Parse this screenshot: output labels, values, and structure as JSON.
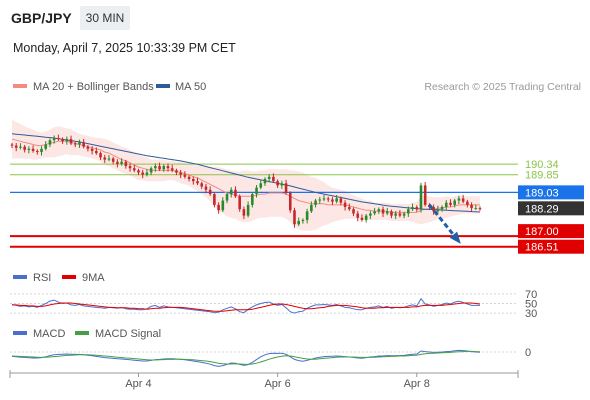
{
  "header": {
    "symbol": "GBP/JPY",
    "timeframe": "30 MIN"
  },
  "datetime": "Monday, April 7, 2025 10:33:39 PM CET",
  "legend": {
    "ma20": {
      "label": "MA 20 + Bollinger Bands",
      "color": "#f28b82"
    },
    "ma50": {
      "label": "MA 50",
      "color": "#2e5c9a"
    },
    "credit": "Research © 2025 Trading Central"
  },
  "chart_data": [
    {
      "type": "candlestick",
      "title": "",
      "ylim": [
        185.8,
        193.5
      ],
      "n_bars": 112,
      "price": [
        191.2,
        191.1,
        191.15,
        191.0,
        191.05,
        190.95,
        190.9,
        191.05,
        191.25,
        191.45,
        191.55,
        191.5,
        191.4,
        191.5,
        191.3,
        191.25,
        191.35,
        191.15,
        191.05,
        190.95,
        190.85,
        190.65,
        190.55,
        190.6,
        190.45,
        190.35,
        190.45,
        190.25,
        190.15,
        190.05,
        189.95,
        189.85,
        189.95,
        190.15,
        190.25,
        190.1,
        190.25,
        190.15,
        190.05,
        189.95,
        189.85,
        189.75,
        189.65,
        189.55,
        189.45,
        189.3,
        189.15,
        188.95,
        188.45,
        188.2,
        188.65,
        188.95,
        189.15,
        188.85,
        188.25,
        187.95,
        188.45,
        188.95,
        189.25,
        189.45,
        189.65,
        189.75,
        189.55,
        189.35,
        189.45,
        189.0,
        188.2,
        187.55,
        187.7,
        187.75,
        188.15,
        188.45,
        188.65,
        188.7,
        188.75,
        188.7,
        188.6,
        188.75,
        188.55,
        188.35,
        188.25,
        188.05,
        187.85,
        187.75,
        187.95,
        188.05,
        188.15,
        188.25,
        188.05,
        188.15,
        187.95,
        188.05,
        187.95,
        188.05,
        188.25,
        188.35,
        188.25,
        189.35,
        188.45,
        188.35,
        188.15,
        188.25,
        188.35,
        188.55,
        188.45,
        188.65,
        188.75,
        188.6,
        188.45,
        188.3,
        188.3,
        188.29
      ],
      "series": [
        {
          "name": "MA 20",
          "values": [
            191.5,
            191.45,
            191.4,
            191.35,
            191.3,
            191.25,
            191.2,
            191.2,
            191.25,
            191.3,
            191.35,
            191.4,
            191.4,
            191.4,
            191.35,
            191.3,
            191.25,
            191.2,
            191.15,
            191.1,
            191.05,
            191.0,
            190.9,
            190.85,
            190.75,
            190.65,
            190.55,
            190.5,
            190.4,
            190.3,
            190.2,
            190.15,
            190.1,
            190.05,
            190.05,
            190.05,
            190.05,
            190.05,
            190.05,
            190.0,
            189.95,
            189.9,
            189.85,
            189.75,
            189.7,
            189.6,
            189.5,
            189.4,
            189.3,
            189.2,
            189.1,
            189.0,
            188.95,
            188.9,
            188.85,
            188.85,
            188.85,
            188.85,
            188.9,
            188.95,
            188.95,
            189.0,
            189.0,
            189.0,
            189.0,
            188.95,
            188.85,
            188.75,
            188.65,
            188.6,
            188.55,
            188.5,
            188.5,
            188.5,
            188.5,
            188.45,
            188.45,
            188.45,
            188.45,
            188.45,
            188.4,
            188.35,
            188.3,
            188.25,
            188.2,
            188.2,
            188.15,
            188.15,
            188.15,
            188.15,
            188.1,
            188.1,
            188.1,
            188.1,
            188.1,
            188.1,
            188.1,
            188.2,
            188.25,
            188.25,
            188.25,
            188.3,
            188.3,
            188.35,
            188.35,
            188.4,
            188.45,
            188.45,
            188.45,
            188.45,
            188.45,
            188.45
          ]
        },
        {
          "name": "MA 50",
          "values": [
            191.75,
            191.73,
            191.71,
            191.69,
            191.67,
            191.65,
            191.63,
            191.61,
            191.59,
            191.57,
            191.55,
            191.52,
            191.49,
            191.46,
            191.43,
            191.4,
            191.37,
            191.33,
            191.29,
            191.25,
            191.21,
            191.17,
            191.13,
            191.09,
            191.05,
            191.01,
            190.97,
            190.93,
            190.89,
            190.85,
            190.81,
            190.77,
            190.73,
            190.7,
            190.67,
            190.64,
            190.61,
            190.58,
            190.55,
            190.52,
            190.49,
            190.45,
            190.41,
            190.37,
            190.33,
            190.28,
            190.23,
            190.18,
            190.13,
            190.08,
            190.03,
            189.98,
            189.93,
            189.88,
            189.83,
            189.78,
            189.73,
            189.69,
            189.65,
            189.61,
            189.57,
            189.53,
            189.49,
            189.45,
            189.41,
            189.37,
            189.33,
            189.28,
            189.23,
            189.18,
            189.13,
            189.08,
            189.03,
            188.99,
            188.95,
            188.91,
            188.87,
            188.83,
            188.79,
            188.75,
            188.71,
            188.67,
            188.63,
            188.59,
            188.56,
            188.53,
            188.5,
            188.47,
            188.44,
            188.41,
            188.39,
            188.37,
            188.35,
            188.33,
            188.31,
            188.29,
            188.27,
            188.26,
            188.25,
            188.24,
            188.23,
            188.22,
            188.21,
            188.2,
            188.19,
            188.18,
            188.17,
            188.16,
            188.15,
            188.14,
            188.13,
            188.12
          ]
        }
      ],
      "bands_width": [
        0.9,
        0.85,
        0.8,
        0.75,
        0.7,
        0.7,
        0.65,
        0.6,
        0.6,
        0.65,
        0.7,
        0.7,
        0.65,
        0.6,
        0.6,
        0.55,
        0.5,
        0.5,
        0.5,
        0.5,
        0.5,
        0.55,
        0.6,
        0.6,
        0.6,
        0.6,
        0.6,
        0.6,
        0.6,
        0.6,
        0.6,
        0.55,
        0.55,
        0.5,
        0.5,
        0.5,
        0.5,
        0.45,
        0.45,
        0.45,
        0.5,
        0.5,
        0.5,
        0.55,
        0.6,
        0.65,
        0.7,
        0.8,
        0.9,
        1.0,
        1.05,
        1.1,
        1.1,
        1.1,
        1.15,
        1.2,
        1.2,
        1.15,
        1.1,
        1.1,
        1.1,
        1.1,
        1.1,
        1.1,
        1.1,
        1.15,
        1.2,
        1.3,
        1.35,
        1.35,
        1.3,
        1.25,
        1.2,
        1.1,
        1.0,
        0.9,
        0.8,
        0.75,
        0.7,
        0.65,
        0.6,
        0.55,
        0.5,
        0.5,
        0.45,
        0.45,
        0.4,
        0.4,
        0.4,
        0.4,
        0.4,
        0.4,
        0.4,
        0.4,
        0.4,
        0.45,
        0.5,
        0.65,
        0.65,
        0.6,
        0.55,
        0.5,
        0.5,
        0.5,
        0.45,
        0.45,
        0.45,
        0.4,
        0.4,
        0.4,
        0.4,
        0.4
      ],
      "levels": [
        {
          "value": 190.34,
          "label": "190.34",
          "color": "#8bc34a",
          "kind": "resistance"
        },
        {
          "value": 189.85,
          "label": "189.85",
          "color": "#8bc34a",
          "kind": "resistance"
        },
        {
          "value": 189.03,
          "label": "189.03",
          "color": "#1a73e8",
          "kind": "pivot"
        },
        {
          "value": 188.29,
          "label": "188.29",
          "color": "#333333",
          "kind": "last"
        },
        {
          "value": 187.0,
          "label": "187.00",
          "color": "#e00000",
          "kind": "target"
        },
        {
          "value": 186.51,
          "label": "186.51",
          "color": "#e00000",
          "kind": "target"
        }
      ],
      "x_ticks": [
        {
          "index": 30,
          "label": "Apr 4"
        },
        {
          "index": 63,
          "label": "Apr 6"
        },
        {
          "index": 96,
          "label": "Apr 8"
        }
      ],
      "arrow": {
        "from_index": 99,
        "from_value": 188.45,
        "to_index": 106,
        "to_value": 186.75,
        "color": "#1f5fa8"
      }
    },
    {
      "type": "line",
      "title": "",
      "ylim": [
        22,
        78
      ],
      "ticks": [
        {
          "value": 70,
          "label": "70"
        },
        {
          "value": 50,
          "label": "50"
        },
        {
          "value": 30,
          "label": "30"
        }
      ],
      "series": [
        {
          "name": "RSI",
          "color": "#4a6fd1",
          "values": [
            48,
            46,
            44,
            45,
            43,
            44,
            42,
            46,
            50,
            55,
            57,
            53,
            50,
            51,
            47,
            46,
            48,
            45,
            44,
            43,
            42,
            41,
            40,
            42,
            41,
            40,
            42,
            39,
            38,
            38,
            37,
            37,
            39,
            44,
            46,
            42,
            45,
            43,
            42,
            41,
            40,
            39,
            38,
            37,
            36,
            35,
            34,
            33,
            31,
            32,
            37,
            40,
            43,
            39,
            33,
            31,
            38,
            43,
            47,
            50,
            52,
            53,
            49,
            46,
            48,
            41,
            33,
            30,
            33,
            34,
            40,
            44,
            47,
            47,
            48,
            47,
            46,
            48,
            45,
            42,
            41,
            39,
            37,
            37,
            40,
            42,
            43,
            45,
            42,
            44,
            40,
            42,
            41,
            42,
            45,
            47,
            45,
            60,
            49,
            47,
            44,
            46,
            48,
            51,
            49,
            53,
            55,
            52,
            49,
            46,
            46,
            46
          ]
        },
        {
          "name": "9MA",
          "color": "#e00000",
          "values": [
            47,
            47,
            46,
            46,
            45,
            45,
            44,
            44,
            45,
            47,
            49,
            50,
            51,
            51,
            51,
            50,
            49,
            48,
            47,
            46,
            45,
            44,
            43,
            42,
            42,
            41,
            41,
            41,
            40,
            40,
            39,
            39,
            38,
            39,
            40,
            40,
            41,
            42,
            42,
            42,
            42,
            41,
            40,
            39,
            38,
            37,
            36,
            35,
            34,
            34,
            34,
            35,
            36,
            37,
            37,
            37,
            37,
            38,
            40,
            42,
            44,
            46,
            48,
            49,
            49,
            48,
            46,
            44,
            42,
            40,
            39,
            39,
            40,
            41,
            42,
            44,
            45,
            46,
            46,
            46,
            45,
            44,
            43,
            41,
            40,
            40,
            40,
            41,
            41,
            42,
            42,
            42,
            42,
            42,
            42,
            43,
            43,
            45,
            46,
            46,
            46,
            46,
            46,
            47,
            48,
            49,
            50,
            51,
            51,
            51,
            50,
            49
          ]
        }
      ],
      "legend": [
        "RSI",
        "9MA"
      ]
    },
    {
      "type": "line",
      "title": "",
      "ylim": [
        -1.0,
        0.5
      ],
      "ticks": [
        {
          "value": 0,
          "label": "0"
        }
      ],
      "series": [
        {
          "name": "MACD",
          "color": "#4a6fd1",
          "values": [
            -0.22,
            -0.24,
            -0.26,
            -0.27,
            -0.29,
            -0.3,
            -0.3,
            -0.28,
            -0.24,
            -0.18,
            -0.14,
            -0.12,
            -0.11,
            -0.1,
            -0.11,
            -0.12,
            -0.12,
            -0.14,
            -0.16,
            -0.19,
            -0.22,
            -0.25,
            -0.28,
            -0.3,
            -0.32,
            -0.34,
            -0.35,
            -0.37,
            -0.39,
            -0.41,
            -0.43,
            -0.45,
            -0.45,
            -0.42,
            -0.38,
            -0.37,
            -0.35,
            -0.34,
            -0.34,
            -0.35,
            -0.37,
            -0.39,
            -0.42,
            -0.45,
            -0.48,
            -0.52,
            -0.56,
            -0.61,
            -0.68,
            -0.72,
            -0.68,
            -0.62,
            -0.55,
            -0.56,
            -0.62,
            -0.67,
            -0.63,
            -0.52,
            -0.38,
            -0.24,
            -0.14,
            -0.08,
            -0.06,
            -0.07,
            -0.06,
            -0.12,
            -0.24,
            -0.37,
            -0.43,
            -0.46,
            -0.42,
            -0.36,
            -0.3,
            -0.26,
            -0.23,
            -0.22,
            -0.21,
            -0.2,
            -0.21,
            -0.23,
            -0.25,
            -0.27,
            -0.3,
            -0.31,
            -0.28,
            -0.25,
            -0.23,
            -0.2,
            -0.2,
            -0.18,
            -0.19,
            -0.18,
            -0.18,
            -0.17,
            -0.14,
            -0.11,
            -0.1,
            0.05,
            0.02,
            0.0,
            -0.02,
            -0.01,
            0.0,
            0.02,
            0.03,
            0.06,
            0.08,
            0.07,
            0.05,
            0.02,
            0.0,
            -0.01
          ]
        },
        {
          "name": "MACD Signal",
          "color": "#43a047",
          "values": [
            -0.2,
            -0.21,
            -0.22,
            -0.23,
            -0.24,
            -0.25,
            -0.26,
            -0.27,
            -0.26,
            -0.25,
            -0.23,
            -0.21,
            -0.19,
            -0.17,
            -0.16,
            -0.15,
            -0.14,
            -0.14,
            -0.14,
            -0.15,
            -0.16,
            -0.18,
            -0.2,
            -0.22,
            -0.24,
            -0.26,
            -0.28,
            -0.3,
            -0.31,
            -0.33,
            -0.35,
            -0.37,
            -0.39,
            -0.4,
            -0.4,
            -0.39,
            -0.38,
            -0.37,
            -0.37,
            -0.36,
            -0.36,
            -0.37,
            -0.38,
            -0.39,
            -0.41,
            -0.43,
            -0.45,
            -0.48,
            -0.52,
            -0.56,
            -0.59,
            -0.6,
            -0.6,
            -0.59,
            -0.6,
            -0.61,
            -0.62,
            -0.6,
            -0.56,
            -0.5,
            -0.43,
            -0.36,
            -0.3,
            -0.25,
            -0.21,
            -0.19,
            -0.2,
            -0.24,
            -0.28,
            -0.32,
            -0.35,
            -0.36,
            -0.36,
            -0.34,
            -0.32,
            -0.3,
            -0.28,
            -0.26,
            -0.25,
            -0.25,
            -0.25,
            -0.25,
            -0.26,
            -0.27,
            -0.27,
            -0.27,
            -0.26,
            -0.25,
            -0.24,
            -0.23,
            -0.22,
            -0.21,
            -0.2,
            -0.2,
            -0.19,
            -0.17,
            -0.16,
            -0.12,
            -0.09,
            -0.07,
            -0.06,
            -0.05,
            -0.04,
            -0.03,
            -0.02,
            0.0,
            0.01,
            0.02,
            0.03,
            0.03,
            0.02,
            0.01
          ]
        }
      ],
      "legend": [
        "MACD",
        "MACD Signal"
      ]
    }
  ]
}
